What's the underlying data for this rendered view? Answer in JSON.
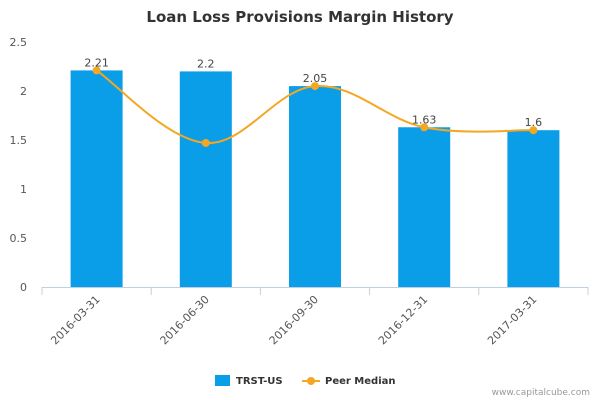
{
  "chart_data": {
    "type": "bar",
    "title": "Loan Loss Provisions Margin History",
    "categories": [
      "2016-03-31",
      "2016-06-30",
      "2016-09-30",
      "2016-12-31",
      "2017-03-31"
    ],
    "series": [
      {
        "name": "TRST-US",
        "kind": "bar",
        "color": "#0a9ee8",
        "values": [
          2.21,
          2.2,
          2.05,
          1.63,
          1.6
        ],
        "labels": [
          "2.21",
          "2.2",
          "2.05",
          "1.63",
          "1.6"
        ]
      },
      {
        "name": "Peer Median",
        "kind": "line",
        "color": "#f5a623",
        "values": [
          2.21,
          1.47,
          2.05,
          1.63,
          1.6
        ]
      }
    ],
    "ylim": [
      0,
      2.5
    ],
    "yticks": [
      "0",
      "0.5",
      "1",
      "1.5",
      "2",
      "2.5"
    ],
    "ytick_values": [
      0,
      0.5,
      1,
      1.5,
      2,
      2.5
    ],
    "grid": false,
    "legend": "bottom-center"
  },
  "credit": "www.capitalcube.com"
}
